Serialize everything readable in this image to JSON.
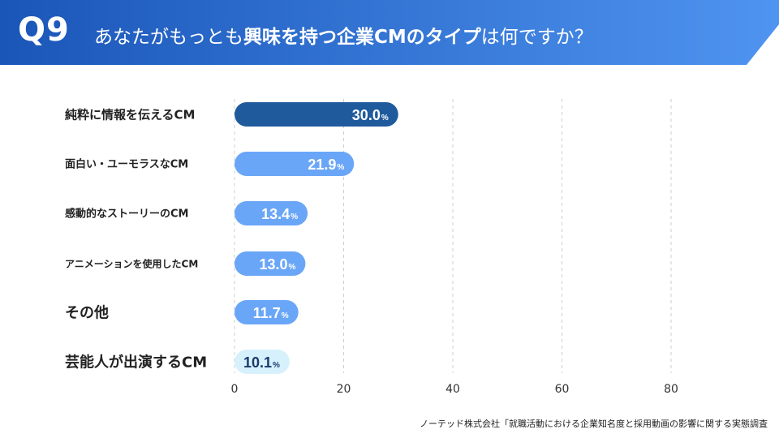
{
  "header": {
    "q_label": "Q9",
    "title_pre": "あなたがもっとも",
    "title_bold1": "興味を持つ企業CMのタイプ",
    "title_post": "は何ですか？",
    "color_start": "#1a56b8",
    "color_end": "#4f94f0"
  },
  "chart_data": {
    "type": "bar",
    "orientation": "horizontal",
    "categories": [
      "純粋に情報を伝えるCM",
      "面白い・ユーモラスなCM",
      "感動的なストーリーのCM",
      "アニメーションを使用したCM",
      "その他",
      "芸能人が出演するCM"
    ],
    "values": [
      30.0,
      21.9,
      13.4,
      13.0,
      11.7,
      10.1
    ],
    "value_labels": [
      "30.0",
      "21.9",
      "13.4",
      "13.0",
      "11.7",
      "10.1"
    ],
    "unit": "%",
    "bar_colors": [
      "#1f5a9c",
      "#6aa6f7",
      "#6aa6f7",
      "#6aa6f7",
      "#6aa6f7",
      "#d6f1fc"
    ],
    "label_colors": [
      "#ffffff",
      "#ffffff",
      "#ffffff",
      "#ffffff",
      "#ffffff",
      "#1a3a6a"
    ],
    "xlim": [
      0,
      80
    ],
    "xticks": [
      0,
      20,
      40,
      60,
      80
    ],
    "grid": true
  },
  "footer": {
    "source": "ノーテッド株式会社「就職活動における企業知名度と採用動画の影響に関する実態調査"
  }
}
